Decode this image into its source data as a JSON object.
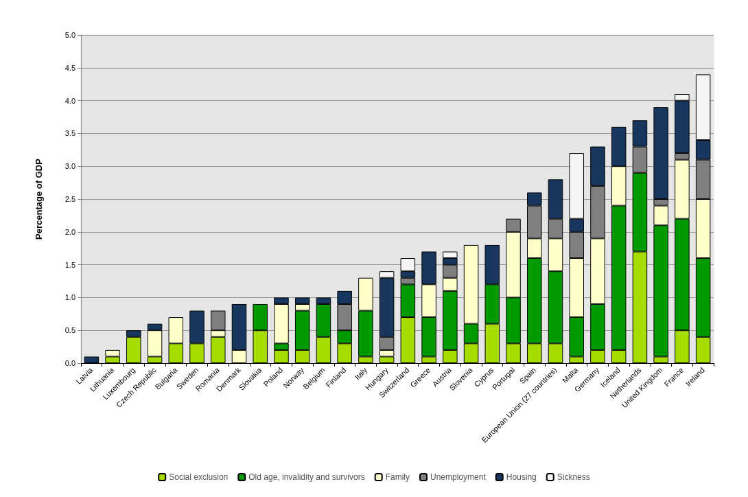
{
  "chart_data": {
    "type": "bar",
    "stacked": true,
    "ylabel": "Percentage of GDP",
    "ylim": [
      0,
      5
    ],
    "yticks": [
      {
        "value": 0,
        "label": "0.0"
      },
      {
        "value": 0.5,
        "label": "0.5"
      },
      {
        "value": 1,
        "label": "1.0"
      },
      {
        "value": 1.5,
        "label": "1.5"
      },
      {
        "value": 2,
        "label": "2.0"
      },
      {
        "value": 2.5,
        "label": "2.5"
      },
      {
        "value": 3,
        "label": "3.0"
      },
      {
        "value": 3.5,
        "label": "3.5"
      },
      {
        "value": 4,
        "label": "4.0"
      },
      {
        "value": 4.5,
        "label": "4.5"
      },
      {
        "value": 5,
        "label": "5.0"
      }
    ],
    "grid": "y",
    "legend": "bottom",
    "categories": [
      "Latvia",
      "Lithuania",
      "Luxembourg",
      "Czech Republic",
      "Bulgaria",
      "Sweden",
      "Romania",
      "Denmark",
      "Slovakia",
      "Poland",
      "Norway",
      "Belgium",
      "Finland",
      "Italy",
      "Hungary",
      "Switzerland",
      "Greece",
      "Austria",
      "Slovenia",
      "Cyprus",
      "Portugal",
      "Spain",
      "European Union (27 countries)",
      "Malta",
      "Germany",
      "Iceland",
      "Netherlands",
      "United Kingdom",
      "France",
      "Ireland"
    ],
    "series": [
      {
        "name": "Social exclusion",
        "color": "#a6dc00",
        "values": [
          null,
          0.1,
          0.4,
          0.1,
          0.3,
          0.3,
          0.4,
          null,
          0.5,
          0.2,
          0.2,
          0.4,
          0.3,
          0.1,
          0.1,
          0.7,
          0.1,
          0.2,
          0.3,
          0.6,
          0.3,
          0.3,
          0.3,
          0.1,
          0.2,
          0.2,
          1.7,
          0.1,
          0.5,
          0.4
        ]
      },
      {
        "name": "Old age, invalidity and survivors",
        "color": "#009900",
        "values": [
          null,
          null,
          null,
          null,
          null,
          null,
          null,
          null,
          0.4,
          0.1,
          0.6,
          0.5,
          0.2,
          0.7,
          null,
          0.5,
          0.6,
          0.9,
          0.3,
          0.6,
          0.7,
          1.3,
          1.1,
          0.6,
          0.7,
          2.2,
          1.2,
          2.0,
          1.7,
          1.2
        ]
      },
      {
        "name": "Family",
        "color": "#ffffcc",
        "values": [
          null,
          0.1,
          null,
          0.4,
          0.4,
          null,
          0.1,
          0.2,
          null,
          0.6,
          0.1,
          null,
          null,
          0.5,
          0.1,
          null,
          0.5,
          0.2,
          1.2,
          null,
          1.0,
          0.3,
          0.5,
          0.9,
          1.0,
          0.6,
          null,
          0.3,
          0.9,
          0.9
        ]
      },
      {
        "name": "Unemployment",
        "color": "#7f7f7f",
        "values": [
          null,
          null,
          null,
          null,
          null,
          null,
          0.3,
          null,
          null,
          null,
          null,
          null,
          0.4,
          null,
          0.2,
          0.1,
          null,
          0.2,
          null,
          null,
          0.2,
          0.5,
          0.3,
          0.4,
          0.8,
          null,
          0.4,
          0.1,
          0.1,
          0.6
        ]
      },
      {
        "name": "Housing",
        "color": "#17375e",
        "values": [
          0.1,
          null,
          0.1,
          0.1,
          null,
          0.5,
          null,
          0.7,
          null,
          0.1,
          0.1,
          0.1,
          0.2,
          null,
          0.9,
          0.1,
          0.5,
          0.1,
          null,
          0.6,
          null,
          0.2,
          0.6,
          0.2,
          0.6,
          0.6,
          0.4,
          1.4,
          0.8,
          0.3
        ]
      },
      {
        "name": "Sickness",
        "color": "#f5f5f5",
        "values": [
          null,
          null,
          null,
          null,
          null,
          null,
          null,
          null,
          null,
          null,
          null,
          null,
          null,
          null,
          0.1,
          0.2,
          null,
          0.1,
          null,
          null,
          null,
          null,
          null,
          1.0,
          null,
          null,
          null,
          null,
          0.1,
          1.0
        ]
      }
    ]
  }
}
